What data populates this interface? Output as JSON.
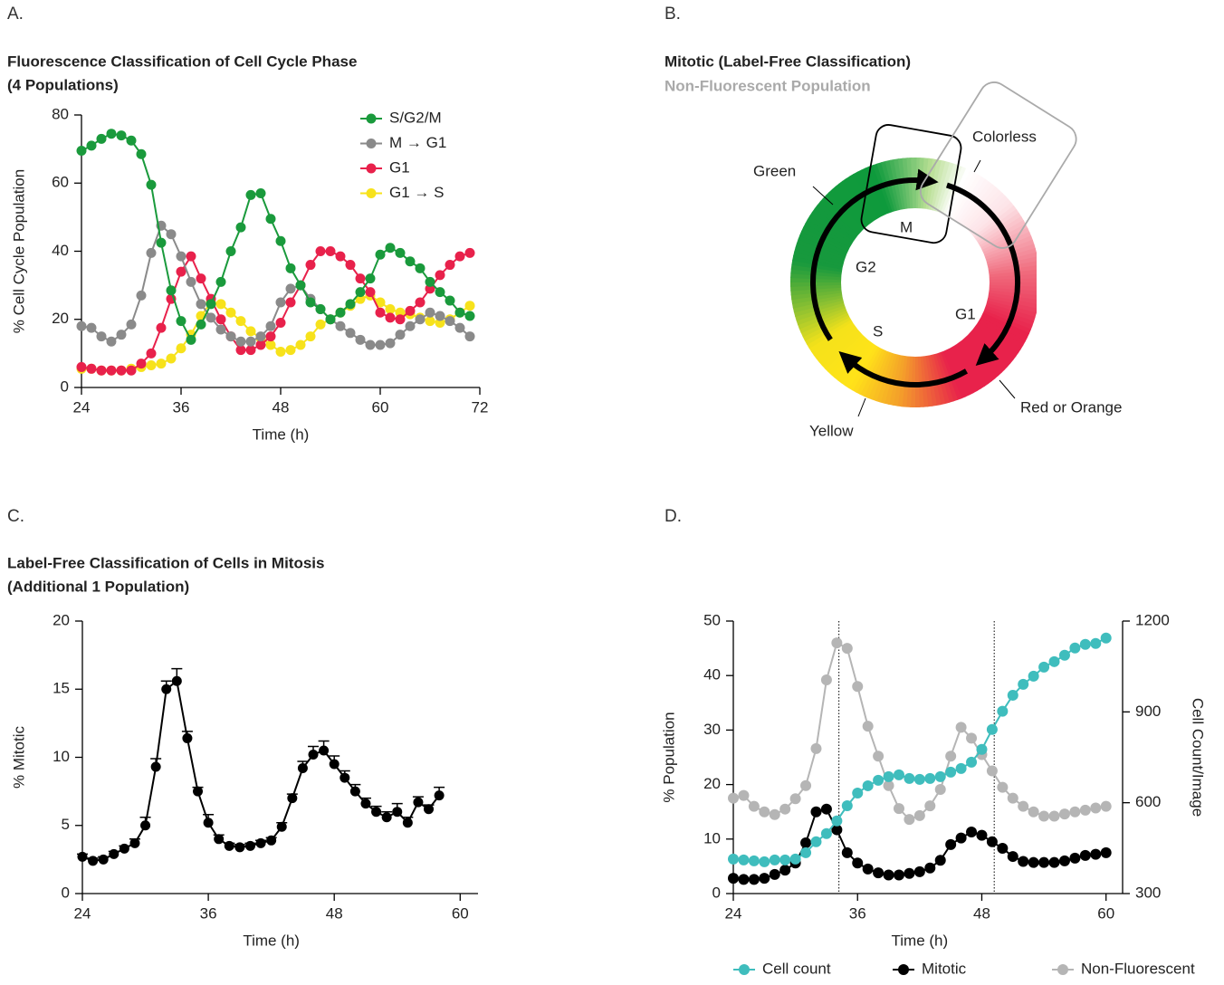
{
  "chart_data": [
    {
      "type": "line",
      "panel": "A.",
      "title": [
        "Fluorescence Classification of Cell Cycle Phase",
        "(4 Populations)"
      ],
      "xlabel": "Time (h)",
      "ylabel": "% Cell Cycle Population",
      "x": [
        24,
        25.2,
        26.4,
        27.6,
        28.8,
        30,
        31.2,
        32.4,
        33.6,
        34.8,
        36,
        37.2,
        38.4,
        39.6,
        40.8,
        42,
        43.2,
        44.4,
        45.6,
        46.8,
        48,
        49.2,
        50.4,
        51.6,
        52.8,
        54,
        55.2,
        56.4,
        57.6,
        58.8,
        60,
        61.2,
        62.4,
        63.6,
        64.8,
        66,
        67.2,
        68.4,
        69.6,
        70.8
      ],
      "series": [
        {
          "name": "S/G2/M",
          "color": "#1a9a3c",
          "values": [
            69.5,
            71,
            73,
            74.5,
            74,
            72.5,
            68.5,
            59.5,
            42.5,
            28.5,
            19.5,
            14,
            18.5,
            24.5,
            31,
            40,
            47,
            56.5,
            57,
            49.5,
            43,
            35,
            30,
            25,
            23,
            20,
            22,
            24.5,
            28,
            32,
            39,
            41,
            39.5,
            37,
            35,
            31,
            28,
            25.5,
            22,
            21
          ]
        },
        {
          "name": "M → G1",
          "color": "#8a8a8a",
          "values": [
            18,
            17.5,
            15,
            13.5,
            15.5,
            18.5,
            27,
            39.5,
            47.5,
            45,
            38.5,
            31,
            24.5,
            20.5,
            17,
            15,
            13.5,
            13.5,
            15,
            18,
            25,
            29,
            30,
            26,
            23,
            20,
            18,
            16,
            14,
            12.5,
            12.5,
            13,
            15.5,
            18,
            20,
            22,
            21,
            19.5,
            17.5,
            15
          ]
        },
        {
          "name": "G1",
          "color": "#e8214b",
          "values": [
            6,
            5.5,
            5,
            5,
            5,
            5,
            7,
            10,
            17.5,
            26,
            34,
            38.5,
            32,
            26,
            20,
            15,
            11,
            11,
            12.5,
            15,
            19,
            25,
            30,
            36,
            40,
            40,
            38.5,
            36,
            32,
            28,
            22,
            20.5,
            20,
            22.5,
            25,
            29,
            33,
            36,
            38.5,
            39.5
          ]
        },
        {
          "name": "G1 → S",
          "color": "#f7e21b",
          "values": [
            5.5,
            5.5,
            5,
            5,
            5,
            5.5,
            6,
            6.5,
            7,
            8.5,
            11.5,
            15.5,
            21,
            25,
            24.5,
            22,
            19.5,
            16.5,
            14.5,
            12.5,
            10.5,
            11,
            12.5,
            15,
            18.5,
            20,
            22,
            24,
            26,
            27,
            25,
            23,
            22,
            21.5,
            20.5,
            19.5,
            19,
            20,
            22,
            24
          ]
        }
      ],
      "xlim": [
        24,
        72
      ],
      "xticks": [
        24,
        36,
        48,
        60,
        72
      ],
      "ylim": [
        0,
        80
      ],
      "yticks": [
        0,
        20,
        40,
        60,
        80
      ],
      "legend": "upper right"
    },
    {
      "type": "line",
      "panel": "C.",
      "title": [
        "Label-Free Classification of Cells in Mitosis",
        "(Additional 1 Population)"
      ],
      "xlabel": "Time (h)",
      "ylabel": "% Mitotic",
      "x": [
        24,
        25,
        26,
        27,
        28,
        29,
        30,
        31,
        32,
        33,
        34,
        35,
        36,
        37,
        38,
        39,
        40,
        41,
        42,
        43,
        44,
        45,
        46,
        47,
        48,
        49,
        50,
        51,
        52,
        53,
        54,
        55,
        56,
        57,
        58
      ],
      "values": [
        2.7,
        2.4,
        2.5,
        2.9,
        3.3,
        3.7,
        5.0,
        9.3,
        15.0,
        15.6,
        11.4,
        7.5,
        5.2,
        4.0,
        3.5,
        3.4,
        3.5,
        3.7,
        3.9,
        4.9,
        7.0,
        9.2,
        10.2,
        10.5,
        9.5,
        8.5,
        7.5,
        6.6,
        6.0,
        5.6,
        6.0,
        5.2,
        6.7,
        6.2,
        7.2
      ],
      "errors": [
        0.2,
        0.2,
        0.2,
        0.2,
        0.2,
        0.3,
        0.6,
        0.6,
        0.6,
        0.9,
        0.5,
        0.3,
        0.6,
        0.3,
        0.2,
        0.2,
        0.2,
        0.2,
        0.2,
        0.3,
        0.3,
        0.5,
        0.6,
        0.7,
        0.6,
        0.5,
        0.5,
        0.4,
        0.4,
        0.4,
        0.6,
        0.4,
        0.4,
        0.3,
        0.6
      ],
      "color": "#000000",
      "xlim": [
        24,
        61.7
      ],
      "xticks": [
        24,
        36,
        48,
        60
      ],
      "ylim": [
        0,
        20
      ],
      "yticks": [
        0,
        5,
        10,
        15,
        20
      ]
    },
    {
      "type": "line",
      "panel": "D.",
      "xlabel": "Time (h)",
      "ylabel": "% Population",
      "y2label": "Cell Count/Image",
      "x": [
        24,
        25,
        26,
        27,
        28,
        29,
        30,
        31,
        32,
        33,
        34,
        35,
        36,
        37,
        38,
        39,
        40,
        41,
        42,
        43,
        44,
        45,
        46,
        47,
        48,
        49,
        50,
        51,
        52,
        53,
        54,
        55,
        56,
        57,
        58,
        59,
        60
      ],
      "series": [
        {
          "name": "Cell count",
          "color": "#3fbdbd",
          "axis": "y2",
          "values": [
            414,
            411,
            408,
            405,
            411,
            411,
            414,
            435,
            471,
            498,
            540,
            590,
            632,
            656,
            674,
            686,
            692,
            680,
            677,
            680,
            686,
            701,
            713,
            734,
            776,
            842,
            902,
            955,
            991,
            1018,
            1048,
            1066,
            1087,
            1111,
            1123,
            1126,
            1144
          ]
        },
        {
          "name": "Mitotic",
          "color": "#000000",
          "values": [
            2.8,
            2.6,
            2.6,
            2.8,
            3.5,
            4.3,
            5.6,
            9.3,
            15.0,
            15.5,
            11.7,
            7.5,
            5.6,
            4.5,
            3.8,
            3.4,
            3.4,
            3.7,
            4.0,
            4.7,
            6.1,
            9.0,
            10.2,
            11.3,
            10.7,
            9.5,
            8.3,
            6.8,
            5.9,
            5.7,
            5.7,
            5.7,
            6.0,
            6.5,
            7.0,
            7.2,
            7.5
          ]
        },
        {
          "name": "Non-Fluorescent",
          "color": "#b5b5b5",
          "values": [
            17.5,
            18,
            16,
            15,
            14.5,
            15.5,
            17.4,
            19.8,
            26.6,
            39.2,
            46,
            45,
            38,
            30.7,
            25.2,
            19.8,
            15.6,
            13.6,
            14.3,
            16.1,
            19.1,
            25.2,
            30.5,
            28.5,
            25.5,
            22.5,
            19.5,
            17.5,
            16,
            15,
            14.2,
            14.2,
            14.6,
            15,
            15.3,
            15.7,
            16
          ]
        }
      ],
      "reference_lines": [
        34.2,
        49.2
      ],
      "xlim": [
        24,
        61.6
      ],
      "xticks": [
        24,
        36,
        48,
        60
      ],
      "ylim": [
        0,
        50
      ],
      "yticks": [
        0,
        10,
        20,
        30,
        40,
        50
      ],
      "y2lim": [
        300,
        1200
      ],
      "y2ticks": [
        300,
        600,
        900,
        1200
      ],
      "legend": "bottom"
    }
  ],
  "diagram": {
    "panel": "B.",
    "title": "Mitotic (Label-Free Classification)",
    "subtitle": "Non-Fluorescent Population",
    "labels": [
      "Colorless",
      "Green",
      "M",
      "G2",
      "G1",
      "S",
      "Red or Orange",
      "Yellow"
    ]
  }
}
